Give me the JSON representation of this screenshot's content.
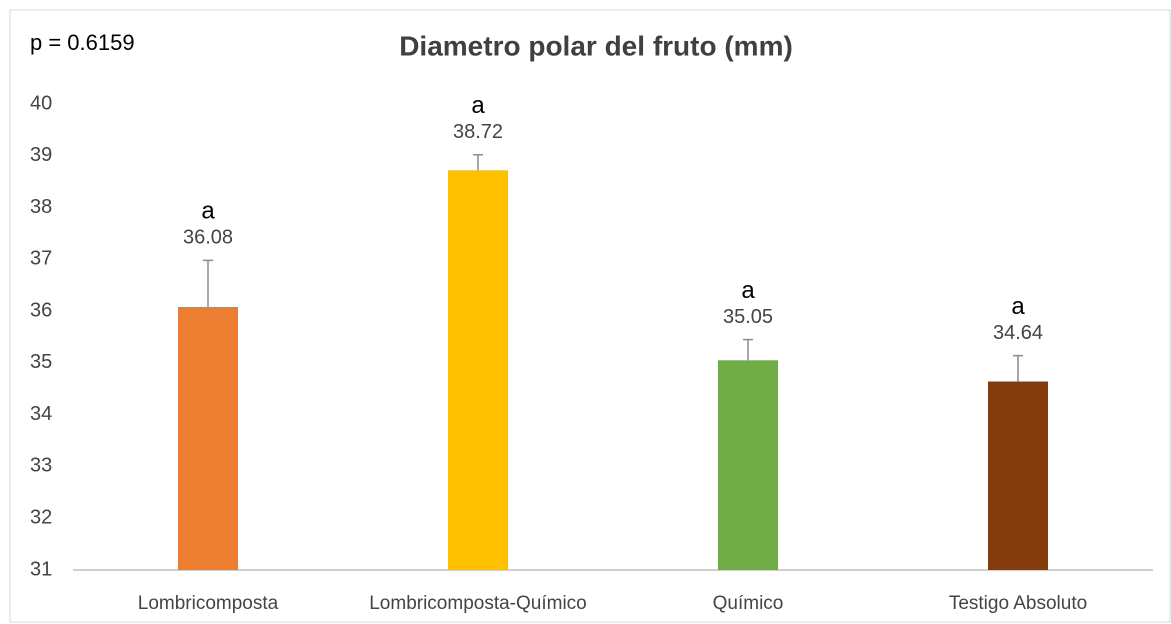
{
  "chart_data": {
    "type": "bar",
    "title": "Diametro polar del  fruto (mm)",
    "annotation": "p = 0.6159",
    "categories": [
      "Lombricomposta",
      "Lombricomposta-Químico",
      "Químico",
      "Testigo Absoluto"
    ],
    "values": [
      36.08,
      38.72,
      35.05,
      34.64
    ],
    "errors": [
      0.9,
      0.3,
      0.4,
      0.5
    ],
    "group_labels": [
      "a",
      "a",
      "a",
      "a"
    ],
    "colors": [
      "#ed7d31",
      "#ffc000",
      "#70ad47",
      "#843c0c"
    ],
    "ylim": [
      31,
      40
    ],
    "yticks": [
      31,
      32,
      33,
      34,
      35,
      36,
      37,
      38,
      39,
      40
    ],
    "grid": false
  }
}
